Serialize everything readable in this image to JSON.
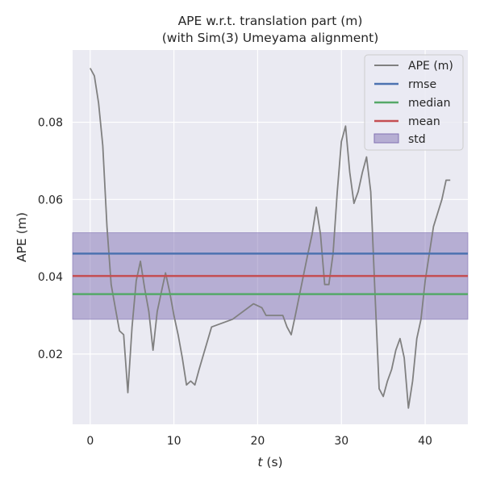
{
  "chart_data": {
    "type": "line",
    "title_line1": "APE w.r.t. translation part (m)",
    "title_line2": "(with Sim(3) Umeyama alignment)",
    "xlabel_var": "t",
    "xlabel_unit": " (s)",
    "ylabel": "APE (m)",
    "xlim": [
      -2.1,
      45.1
    ],
    "ylim": [
      0.0018,
      0.0987
    ],
    "xticks": [
      0,
      10,
      20,
      30,
      40
    ],
    "yticks": [
      0.02,
      0.04,
      0.06,
      0.08
    ],
    "ytick_labels": [
      "0.02",
      "0.04",
      "0.06",
      "0.08"
    ],
    "grid": true,
    "legend_position": "top-right",
    "series": [
      {
        "name": "APE (m)",
        "color": "#808080",
        "x": [
          0,
          0.5,
          1,
          1.5,
          2,
          2.5,
          3,
          3.5,
          4,
          4.5,
          5,
          5.5,
          6,
          6.5,
          7,
          7.5,
          8,
          8.5,
          9,
          9.5,
          10,
          10.5,
          11,
          11.5,
          12,
          12.5,
          13,
          14.5,
          17,
          19.5,
          20.5,
          21,
          23,
          23.5,
          24,
          24.5,
          26,
          26.5,
          27,
          27.5,
          28,
          28.5,
          29,
          29.5,
          30,
          30.5,
          31,
          31.5,
          32,
          32.5,
          33,
          33.5,
          34,
          34.5,
          35,
          35.5,
          36,
          36.5,
          37,
          37.5,
          38,
          38.5,
          39,
          39.5,
          40,
          41,
          42,
          42.5,
          43
        ],
        "values": [
          0.094,
          0.092,
          0.085,
          0.074,
          0.053,
          0.038,
          0.032,
          0.026,
          0.025,
          0.01,
          0.027,
          0.039,
          0.044,
          0.037,
          0.031,
          0.021,
          0.031,
          0.036,
          0.041,
          0.036,
          0.03,
          0.025,
          0.019,
          0.012,
          0.013,
          0.012,
          0.016,
          0.027,
          0.029,
          0.033,
          0.032,
          0.03,
          0.03,
          0.027,
          0.025,
          0.03,
          0.046,
          0.051,
          0.058,
          0.051,
          0.038,
          0.038,
          0.046,
          0.062,
          0.075,
          0.079,
          0.067,
          0.059,
          0.062,
          0.067,
          0.071,
          0.062,
          0.036,
          0.011,
          0.009,
          0.013,
          0.016,
          0.021,
          0.024,
          0.019,
          0.006,
          0.013,
          0.024,
          0.029,
          0.039,
          0.053,
          0.06,
          0.065,
          0.065
        ]
      }
    ],
    "hlines": [
      {
        "name": "rmse",
        "value": 0.046,
        "color": "#4c72b0"
      },
      {
        "name": "median",
        "value": 0.0355,
        "color": "#55a868"
      },
      {
        "name": "mean",
        "value": 0.0402,
        "color": "#c44e52"
      }
    ],
    "std_band": {
      "name": "std",
      "lower": 0.029,
      "upper": 0.0514,
      "color": "#8172b3"
    }
  }
}
